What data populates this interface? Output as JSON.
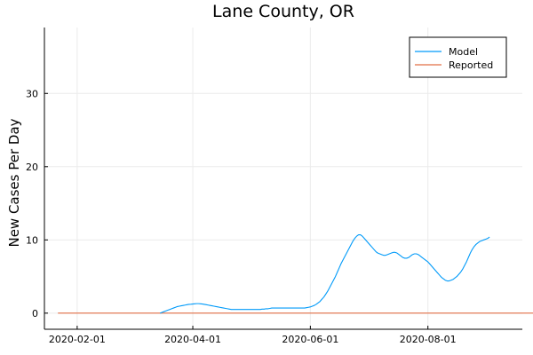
{
  "chart_data": {
    "type": "line",
    "title": "Lane County, OR",
    "xlabel": "",
    "ylabel": "New Cases Per Day",
    "x_start": "2020-01-22",
    "x_range": [
      "2020-01-15",
      "2020-09-19"
    ],
    "ylim": [
      -2.2,
      39
    ],
    "x_ticks": [
      {
        "date": "2020-02-01",
        "label": "2020-02-01"
      },
      {
        "date": "2020-04-01",
        "label": "2020-04-01"
      },
      {
        "date": "2020-06-01",
        "label": "2020-06-01"
      },
      {
        "date": "2020-08-01",
        "label": "2020-08-01"
      }
    ],
    "y_ticks": [
      0,
      10,
      20,
      30
    ],
    "grid": true,
    "legend_position": "top-right",
    "series": [
      {
        "name": "Model",
        "color": "#009af9",
        "start_date": "2020-03-15",
        "values": [
          0,
          0.1,
          0.2,
          0.3,
          0.4,
          0.5,
          0.6,
          0.7,
          0.8,
          0.9,
          0.95,
          1.0,
          1.05,
          1.1,
          1.15,
          1.2,
          1.22,
          1.25,
          1.28,
          1.3,
          1.3,
          1.28,
          1.25,
          1.2,
          1.15,
          1.1,
          1.05,
          1.0,
          0.95,
          0.9,
          0.85,
          0.8,
          0.75,
          0.7,
          0.65,
          0.6,
          0.55,
          0.5,
          0.5,
          0.5,
          0.5,
          0.5,
          0.5,
          0.5,
          0.5,
          0.5,
          0.5,
          0.5,
          0.5,
          0.5,
          0.5,
          0.5,
          0.5,
          0.55,
          0.55,
          0.6,
          0.6,
          0.65,
          0.7,
          0.7,
          0.7,
          0.7,
          0.7,
          0.7,
          0.7,
          0.7,
          0.7,
          0.7,
          0.7,
          0.7,
          0.7,
          0.7,
          0.7,
          0.7,
          0.7,
          0.7,
          0.75,
          0.8,
          0.85,
          0.95,
          1.05,
          1.2,
          1.4,
          1.6,
          1.9,
          2.2,
          2.6,
          3.0,
          3.5,
          4.0,
          4.5,
          5.0,
          5.6,
          6.2,
          6.8,
          7.3,
          7.8,
          8.3,
          8.8,
          9.3,
          9.8,
          10.2,
          10.5,
          10.7,
          10.7,
          10.5,
          10.2,
          9.9,
          9.6,
          9.3,
          9.0,
          8.7,
          8.4,
          8.2,
          8.1,
          8.0,
          7.9,
          7.9,
          8.0,
          8.1,
          8.2,
          8.3,
          8.3,
          8.2,
          8.0,
          7.8,
          7.6,
          7.5,
          7.5,
          7.6,
          7.8,
          8.0,
          8.1,
          8.1,
          8.0,
          7.8,
          7.6,
          7.4,
          7.2,
          7.0,
          6.7,
          6.4,
          6.1,
          5.8,
          5.5,
          5.2,
          4.9,
          4.7,
          4.5,
          4.4,
          4.4,
          4.5,
          4.6,
          4.8,
          5.0,
          5.3,
          5.6,
          6.0,
          6.5,
          7.0,
          7.6,
          8.2,
          8.7,
          9.1,
          9.4,
          9.6,
          9.8,
          9.9,
          10.0,
          10.1,
          10.2,
          10.4
        ]
      },
      {
        "name": "Reported",
        "color": "#e26f46",
        "start_date": "2020-01-22",
        "values": [
          0,
          0,
          0,
          0,
          0,
          0,
          0,
          0,
          0,
          0,
          0,
          0,
          0,
          0,
          0,
          0,
          0,
          0,
          0,
          0,
          0,
          0,
          0,
          0,
          0,
          0,
          0,
          0,
          0,
          0,
          0,
          0,
          0,
          0,
          0,
          0,
          0,
          0,
          0,
          0,
          0,
          0,
          0,
          0,
          0,
          0,
          0,
          0,
          0,
          0,
          0,
          0,
          0,
          0,
          0,
          0,
          0,
          0,
          0,
          0,
          0,
          0,
          0,
          0,
          0,
          0,
          0,
          0,
          0,
          0,
          0,
          0,
          0,
          0,
          0,
          0,
          0,
          0,
          0,
          0,
          0,
          0,
          0,
          0,
          0,
          0,
          0,
          0,
          0,
          0,
          0,
          0,
          0,
          0,
          0,
          0,
          0,
          0,
          0,
          0,
          0,
          0,
          0,
          0,
          0,
          0,
          0,
          0,
          0,
          0,
          0,
          0,
          0,
          0,
          0,
          0,
          0,
          0,
          0,
          0,
          0,
          0,
          0,
          0,
          0,
          0,
          0,
          0,
          0,
          0,
          0,
          0,
          0,
          0,
          0,
          0,
          0,
          0,
          0,
          0,
          0,
          0,
          0,
          0,
          0,
          0,
          0,
          0,
          0,
          0,
          0,
          0,
          0,
          0,
          0,
          0,
          0,
          0,
          0,
          0,
          0,
          0,
          0,
          0,
          0,
          0,
          0,
          0,
          0,
          0,
          0,
          0,
          0,
          0,
          0,
          0,
          0,
          0,
          0,
          0,
          0,
          0,
          0,
          0,
          0,
          0,
          0,
          0,
          0,
          0,
          0,
          0,
          0,
          0,
          0,
          0,
          0,
          0,
          0,
          0,
          0,
          0,
          0,
          0,
          0,
          0,
          0,
          0,
          0,
          0,
          0,
          0,
          0,
          0,
          0,
          0,
          0,
          0,
          0,
          0,
          0,
          0,
          0,
          0,
          0,
          0,
          0,
          0,
          0,
          0,
          0,
          0,
          0,
          0,
          0,
          0,
          0,
          0,
          0,
          0,
          0,
          0,
          0,
          0,
          0,
          0,
          0,
          0,
          0,
          0,
          0,
          0,
          0,
          0,
          0,
          0,
          0,
          0,
          0
        ]
      }
    ]
  },
  "legend": {
    "items": [
      {
        "label": "Model",
        "color": "#009af9"
      },
      {
        "label": "Reported",
        "color": "#e26f46"
      }
    ]
  }
}
